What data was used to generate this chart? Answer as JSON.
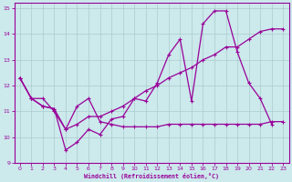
{
  "xlabel": "Windchill (Refroidissement éolien,°C)",
  "background_color": "#cce9ec",
  "grid_color": "#aacccc",
  "line_color": "#990099",
  "xlim": [
    -0.5,
    23.5
  ],
  "ylim": [
    9,
    15.2
  ],
  "xticks": [
    0,
    1,
    2,
    3,
    4,
    5,
    6,
    7,
    8,
    9,
    10,
    11,
    12,
    13,
    14,
    15,
    16,
    17,
    18,
    19,
    20,
    21,
    22,
    23
  ],
  "yticks": [
    9,
    10,
    11,
    12,
    13,
    14,
    15
  ],
  "series1_y": [
    12.3,
    11.5,
    11.5,
    11.0,
    10.3,
    11.2,
    11.5,
    10.6,
    10.5,
    10.4,
    10.4,
    10.4,
    10.4,
    10.5,
    10.5,
    10.5,
    10.5,
    10.5,
    10.5,
    10.5,
    10.5,
    10.5,
    10.6,
    10.6
  ],
  "series2_y": [
    12.3,
    11.5,
    11.2,
    11.1,
    9.5,
    9.8,
    10.3,
    10.1,
    10.7,
    10.8,
    11.5,
    11.4,
    12.1,
    13.2,
    13.8,
    11.4,
    14.4,
    14.9,
    14.9,
    13.3,
    12.1,
    11.5,
    10.5,
    null
  ],
  "series3_y": [
    12.3,
    11.5,
    11.2,
    11.1,
    10.3,
    10.5,
    10.8,
    10.8,
    11.0,
    11.2,
    11.5,
    11.8,
    12.0,
    12.3,
    12.5,
    12.7,
    13.0,
    13.2,
    13.5,
    13.5,
    13.8,
    14.1,
    14.2,
    14.2
  ]
}
